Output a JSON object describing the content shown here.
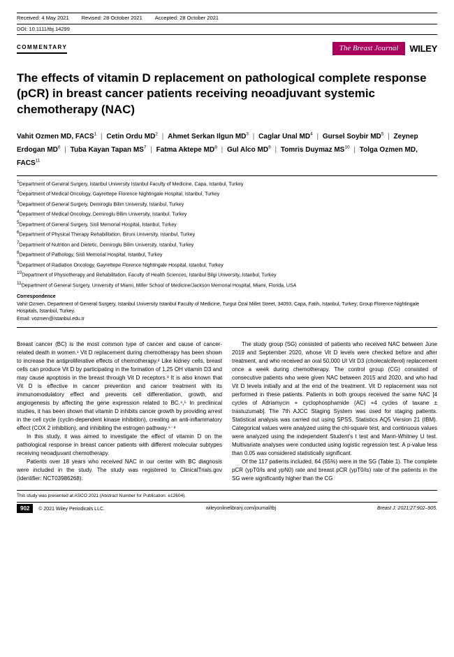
{
  "header": {
    "received": "Received: 4 May 2021",
    "revised": "Revised: 28 October 2021",
    "accepted": "Accepted: 28 October 2021",
    "doi": "DOI: 10.1111/tbj.14299"
  },
  "articleType": "COMMENTARY",
  "journalBadge": "The Breast Journal",
  "publisher": "WILEY",
  "title": "The effects of vitamin D replacement on pathological complete response (pCR) in breast cancer patients receiving neoadjuvant systemic chemotherapy (NAC)",
  "authors": [
    {
      "name": "Vahit Ozmen MD, FACS",
      "sup": "1"
    },
    {
      "name": "Cetin Ordu MD",
      "sup": "2"
    },
    {
      "name": "Ahmet Serkan Ilgun MD",
      "sup": "3"
    },
    {
      "name": "Caglar Unal MD",
      "sup": "4"
    },
    {
      "name": "Gursel Soybir MD",
      "sup": "5"
    },
    {
      "name": "Zeynep Erdogan MD",
      "sup": "6"
    },
    {
      "name": "Tuba Kayan Tapan MS",
      "sup": "7"
    },
    {
      "name": "Fatma Aktepe MD",
      "sup": "8"
    },
    {
      "name": "Gul Alco MD",
      "sup": "9"
    },
    {
      "name": "Tomris Duymaz MS",
      "sup": "10"
    },
    {
      "name": "Tolga Ozmen MD, FACS",
      "sup": "11"
    }
  ],
  "affiliations": [
    {
      "num": "1",
      "text": "Department of General Surgery, Istanbul University Istanbul Faculty of Medicine, Capa, Istanbul, Turkey"
    },
    {
      "num": "2",
      "text": "Department of Medical Oncology, Gayrettepe Florence Nightingale Hospital, Istanbul, Turkey"
    },
    {
      "num": "3",
      "text": "Department of General Surgery, Demiroglu Bilim University, Istanbul, Turkey"
    },
    {
      "num": "4",
      "text": "Department of Medical Oncology, Demiroglu Bilim University, Istanbul, Turkey"
    },
    {
      "num": "5",
      "text": "Department of General Surgery, Sisli Memorial Hospital, Istanbul, Turkey"
    },
    {
      "num": "6",
      "text": "Department of Physical Therapy Rehabilitation, Biruni University, Istanbul, Turkey"
    },
    {
      "num": "7",
      "text": "Department of Nutrition and Dietetic, Demiroglu Bilim University, Istanbul, Turkey"
    },
    {
      "num": "8",
      "text": "Department of Pathology, Sisli Memorial Hospital, Istanbul, Turkey"
    },
    {
      "num": "9",
      "text": "Department of Radiation Oncology, Gayrettepe Florence Nightingale Hospital, Istanbul, Turkey"
    },
    {
      "num": "10",
      "text": "Department of Physiotherapy and Rehabilitation, Faculty of Health Sciences, Istanbul Bilgi University, Istanbul, Turkey"
    },
    {
      "num": "11",
      "text": "Department of General Surgery, University of Miami, Miller School of Medicine/Jackson Memorial Hospital, Miami, Florida, USA"
    }
  ],
  "correspondence": {
    "label": "Correspondence",
    "text": "Vahit Ozmen, Department of General Surgery, Istanbul University Istanbul Faculty of Medicine, Turgut Özal Millet Street, 34093, Capa, Fatih, Istanbul, Turkey; Group Florence Nightingale Hospitals, Istanbul, Turkey.",
    "email": "Email: vozmen@istanbul.edu.tr"
  },
  "body": {
    "p1": "Breast cancer (BC) is the most common type of cancer and cause of cancer-related death in women.¹ Vit D replacement during chemotherapy has been shown to increase the antiproliferative effects of chemotherapy.² Like kidney cells, breast cells can produce Vit D by participating in the formation of 1,25 OH vitamin D3 and may cause apoptosis in the breast through Vit D receptors.³ It is also known that Vit D is effective in cancer prevention and cancer treatment with its immunomodulatory effect and prevents cell differentiation, growth, and angiogenesis by affecting the gene expression related to BC.⁴,⁵ In preclinical studies, it has been shown that vitamin D inhibits cancer growth by providing arrest in the cell cycle (cyclin-dependent kinase inhibition), creating an anti-inflammatory effect (COX 2 inhibition), and inhibiting the estrogen pathway.⁶⁻⁸",
    "p2": "In this study, it was aimed to investigate the effect of vitamin D on the pathological response in breast cancer patients with different molecular subtypes receiving neoadjuvant chemotherapy.",
    "p3": "Patients over 18 years who received NAC in our center with BC diagnosis were included in the study. The study was registered to ClinicalTrials.gov (Identifier: NCT03986268).",
    "p4": "The study group (SG) consisted of patients who received NAC between June 2019 and September 2020, whose Vit D levels were checked before and after treatment, and who received an oral 50,000 UI Vit D3 (cholecalciferol) replacement once a week during chemotherapy. The control group (CG) consisted of consecutive patients who were given NAC between 2015 and 2020, and who had Vit D levels initially and at the end of the treatment. Vit D replacement was not performed in these patients. Patients in both groups received the same NAC [4 cycles of Adriamycin + cyclophosphamide (AC) +4 cycles of taxane ± trastuzumab]. The 7th AJCC Staging System was used for staging patients. Statistical analysis was carried out using SPSS, Statistics AQ5 Version 21 (IBM). Categorical values were analyzed using the chi-square test, and continuous values were analyzed using the independent Student's t test and Mann-Whitney U test. Multivariate analyses were conducted using logistic regression test. A p-value less than 0.05 was considered statistically significant.",
    "p5": "Of the 117 patients included, 64 (55%) were in the SG (Table 1). The complete pCR (ypT0/is and ypN0) rate and breast pCR (ypT0/is) rate of the patients in the SG were significantly higher than the CG"
  },
  "footnote": "This study was presented at ASCO 2021 (Abstract Number for Publication: e12604).",
  "footer": {
    "pageNum": "902",
    "copyright": "© 2021 Wiley Periodicals LLC.",
    "link": "wileyonlinelibrary.com/journal/tbj",
    "citation": "Breast J. 2021;27:902–905."
  },
  "colors": {
    "journalBadgeBg": "#a8005c",
    "textColor": "#000000",
    "bgColor": "#ffffff"
  }
}
